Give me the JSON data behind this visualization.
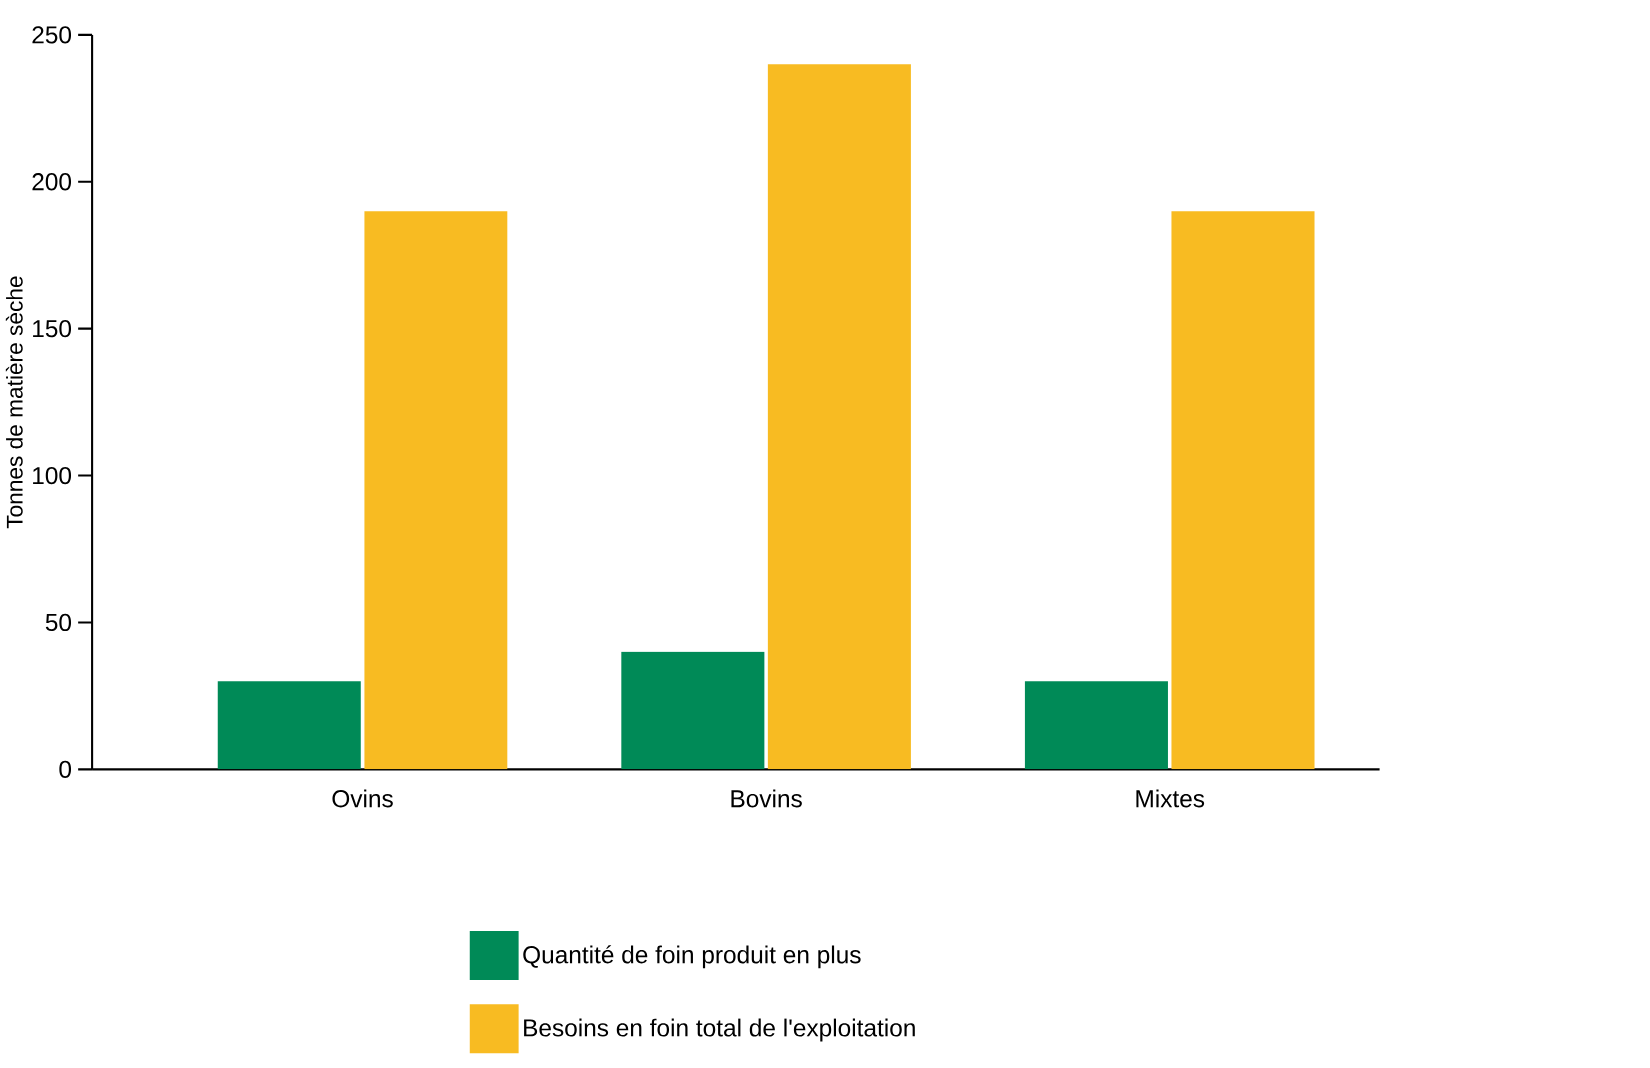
{
  "chart_data": {
    "type": "bar",
    "ylabel": "Tonnes de matière sèche",
    "categories": [
      "Ovins",
      "Bovins",
      "Mixtes"
    ],
    "series": [
      {
        "name": "Quantité de foin produit en plus",
        "color": "#008a57",
        "values": [
          30,
          40,
          30
        ]
      },
      {
        "name": "Besoins en foin total de l'exploitation",
        "color": "#f8bb22",
        "values": [
          190,
          240,
          190
        ]
      }
    ],
    "ylim": [
      0,
      250
    ],
    "yticks": [
      0,
      50,
      100,
      150,
      200,
      250
    ],
    "grid": false,
    "legend": "bottom"
  }
}
